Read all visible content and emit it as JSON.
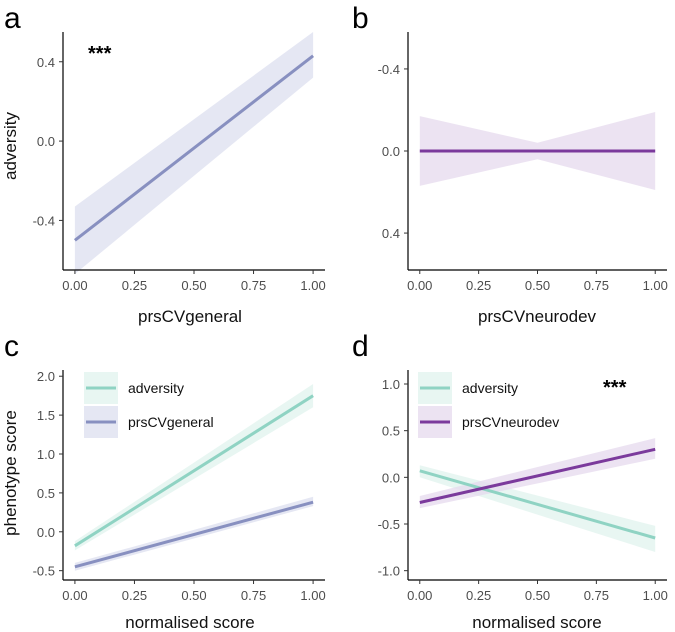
{
  "chart_data": [
    {
      "panel": "a",
      "type": "line",
      "xlabel": "prsCVgeneral",
      "ylabel": "adversity",
      "xlim": [
        -0.05,
        1.05
      ],
      "ylim": [
        -0.65,
        0.55
      ],
      "y_reversed": false,
      "xticks": [
        0,
        0.25,
        0.5,
        0.75,
        1
      ],
      "xtick_labels": [
        "0.00",
        "0.25",
        "0.50",
        "0.75",
        "1.00"
      ],
      "yticks": [
        0.4,
        0.0,
        -0.4
      ],
      "ytick_labels": [
        "0.4",
        "0.0",
        "-0.4"
      ],
      "annotation": "***",
      "grid": false,
      "legend": null,
      "series": [
        {
          "x": [
            0,
            1
          ],
          "values": [
            -0.5,
            0.43
          ],
          "ci_lower": [
            -0.67,
            0.32
          ],
          "ci_upper": [
            -0.33,
            0.55
          ],
          "color": "#8890c0",
          "fill": "#dcdfef"
        }
      ]
    },
    {
      "panel": "b",
      "type": "line",
      "xlabel": "prsCVneurodev",
      "ylabel": "",
      "xlim": [
        -0.05,
        1.05
      ],
      "ylim": [
        -0.58,
        0.58
      ],
      "y_reversed": true,
      "xticks": [
        0,
        0.25,
        0.5,
        0.75,
        1
      ],
      "xtick_labels": [
        "0.00",
        "0.25",
        "0.50",
        "0.75",
        "1.00"
      ],
      "yticks": [
        -0.4,
        0.0,
        0.4
      ],
      "ytick_labels": [
        "-0.4",
        "0.0",
        "0.4"
      ],
      "annotation": "",
      "grid": false,
      "legend": null,
      "series": [
        {
          "x": [
            0,
            0.5,
            1
          ],
          "values": [
            0,
            0,
            0
          ],
          "ci_lower": [
            -0.17,
            -0.04,
            -0.19
          ],
          "ci_upper": [
            0.17,
            0.04,
            0.19
          ],
          "color": "#7b3a9c",
          "fill": "#e6daee"
        }
      ]
    },
    {
      "panel": "c",
      "type": "line",
      "xlabel": "normalised score",
      "ylabel": "phenotype score",
      "xlim": [
        -0.05,
        1.05
      ],
      "ylim": [
        -0.62,
        2.08
      ],
      "y_reversed": false,
      "xticks": [
        0,
        0.25,
        0.5,
        0.75,
        1
      ],
      "xtick_labels": [
        "0.00",
        "0.25",
        "0.50",
        "0.75",
        "1.00"
      ],
      "yticks": [
        2.0,
        1.5,
        1.0,
        0.5,
        0.0,
        -0.5
      ],
      "ytick_labels": [
        "2.0",
        "1.5",
        "1.0",
        "0.5",
        "0.0",
        "-0.5"
      ],
      "annotation": "",
      "grid": false,
      "legend": "top-left",
      "series": [
        {
          "name": "adversity",
          "x": [
            0,
            1
          ],
          "values": [
            -0.18,
            1.75
          ],
          "ci_lower": [
            -0.24,
            1.6
          ],
          "ci_upper": [
            -0.12,
            1.9
          ],
          "color": "#8fd3c3",
          "fill": "#e0f3ee"
        },
        {
          "name": "prsCVgeneral",
          "x": [
            0,
            1
          ],
          "values": [
            -0.45,
            0.38
          ],
          "ci_lower": [
            -0.5,
            0.33
          ],
          "ci_upper": [
            -0.4,
            0.45
          ],
          "color": "#8890c0",
          "fill": "#dcdfef"
        }
      ]
    },
    {
      "panel": "d",
      "type": "line",
      "xlabel": "normalised score",
      "ylabel": "",
      "xlim": [
        -0.05,
        1.05
      ],
      "ylim": [
        -1.1,
        1.15
      ],
      "y_reversed": false,
      "xticks": [
        0,
        0.25,
        0.5,
        0.75,
        1
      ],
      "xtick_labels": [
        "0.00",
        "0.25",
        "0.50",
        "0.75",
        "1.00"
      ],
      "yticks": [
        1.0,
        0.5,
        0.0,
        -0.5,
        -1.0
      ],
      "ytick_labels": [
        "1.0",
        "0.5",
        "0.0",
        "-0.5",
        "-1.0"
      ],
      "annotation": "***",
      "grid": false,
      "legend": "top-left",
      "series": [
        {
          "name": "adversity",
          "x": [
            0,
            1
          ],
          "values": [
            0.07,
            -0.65
          ],
          "ci_lower": [
            0.0,
            -0.8
          ],
          "ci_upper": [
            0.13,
            -0.52
          ],
          "color": "#8fd3c3",
          "fill": "#e0f3ee"
        },
        {
          "name": "prsCVneurodev",
          "x": [
            0,
            1
          ],
          "values": [
            -0.27,
            0.3
          ],
          "ci_lower": [
            -0.33,
            0.2
          ],
          "ci_upper": [
            -0.2,
            0.42
          ],
          "color": "#7b3a9c",
          "fill": "#e6daee"
        }
      ]
    }
  ]
}
